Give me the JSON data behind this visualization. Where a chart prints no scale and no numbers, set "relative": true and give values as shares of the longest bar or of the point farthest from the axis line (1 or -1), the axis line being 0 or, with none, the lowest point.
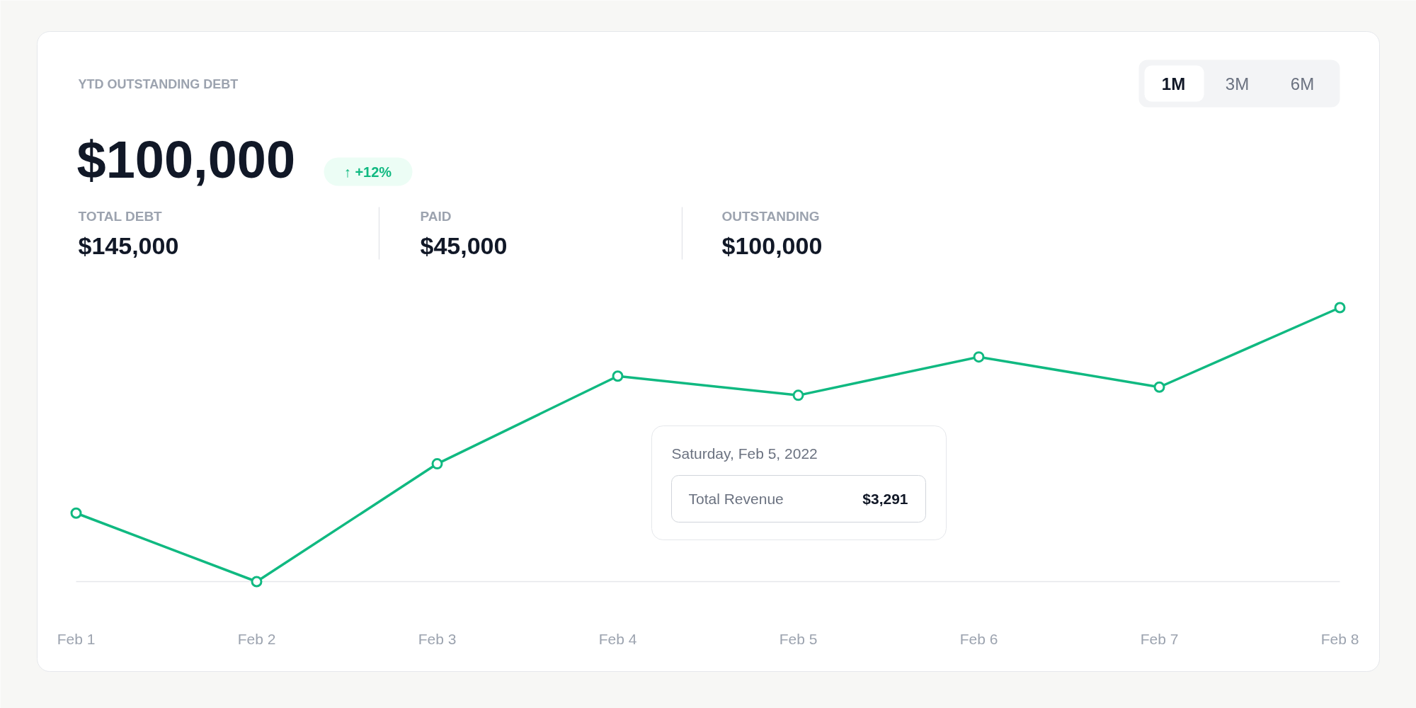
{
  "chart_data": {
    "type": "line",
    "title": "YTD OUTSTANDING DEBT",
    "subtitle": "$100,000",
    "categories": [
      "Feb 1",
      "Feb 2",
      "Feb 3",
      "Feb 4",
      "Feb 5",
      "Feb 6",
      "Feb 7",
      "Feb 8"
    ],
    "series": [
      {
        "color": "#10b981",
        "values": [
          0.25,
          0,
          0.43,
          0.75,
          0.68,
          0.82,
          0.71,
          1
        ]
      }
    ],
    "relative": true,
    "marker": "circle",
    "line_style": "solid",
    "grid": false,
    "annotations": [
      "↑ +12%",
      "TOTAL DEBT",
      "$145,000",
      "PAID",
      "$45,000",
      "OUTSTANDING",
      "$100,000",
      "1M",
      "3M",
      "6M",
      "Saturday, Feb 5, 2022",
      "Total Revenue",
      "$3,291"
    ]
  }
}
